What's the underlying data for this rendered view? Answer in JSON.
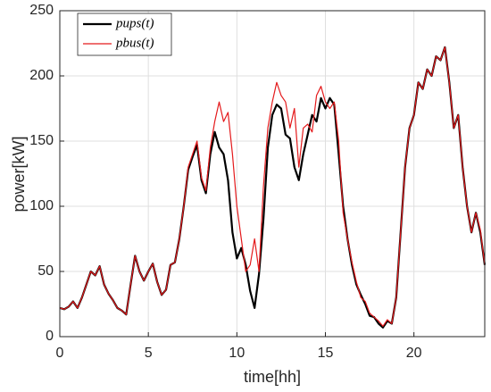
{
  "chart_data": {
    "type": "line",
    "xlabel": "time[hh]",
    "ylabel": "power[kW]",
    "x": [
      0,
      0.25,
      0.5,
      0.75,
      1,
      1.25,
      1.5,
      1.75,
      2,
      2.25,
      2.5,
      2.75,
      3,
      3.25,
      3.5,
      3.75,
      4,
      4.25,
      4.5,
      4.75,
      5,
      5.25,
      5.5,
      5.75,
      6,
      6.25,
      6.5,
      6.75,
      7,
      7.25,
      7.5,
      7.75,
      8,
      8.25,
      8.5,
      8.75,
      9,
      9.25,
      9.5,
      9.75,
      10,
      10.25,
      10.5,
      10.75,
      11,
      11.25,
      11.5,
      11.75,
      12,
      12.25,
      12.5,
      12.75,
      13,
      13.25,
      13.5,
      13.75,
      14,
      14.25,
      14.5,
      14.75,
      15,
      15.25,
      15.5,
      15.75,
      16,
      16.25,
      16.5,
      16.75,
      17,
      17.25,
      17.5,
      17.75,
      18,
      18.25,
      18.5,
      18.75,
      19,
      19.25,
      19.5,
      19.75,
      20,
      20.25,
      20.5,
      20.75,
      21,
      21.25,
      21.5,
      21.75,
      22,
      22.25,
      22.5,
      22.75,
      23,
      23.25,
      23.5,
      23.75,
      24
    ],
    "series": [
      {
        "name": "pups(t)",
        "color": "#000000",
        "values": [
          22,
          21,
          23,
          27,
          22,
          30,
          40,
          50,
          47,
          54,
          40,
          33,
          28,
          22,
          20,
          17,
          40,
          62,
          50,
          43,
          50,
          56,
          42,
          32,
          36,
          55,
          57,
          75,
          100,
          128,
          138,
          147,
          120,
          110,
          140,
          157,
          145,
          140,
          120,
          80,
          60,
          68,
          55,
          35,
          22,
          48,
          90,
          145,
          170,
          178,
          175,
          155,
          152,
          130,
          120,
          140,
          155,
          170,
          165,
          183,
          175,
          183,
          178,
          140,
          100,
          75,
          55,
          40,
          32,
          25,
          16,
          15,
          10,
          7,
          12,
          10,
          30,
          80,
          130,
          160,
          170,
          195,
          190,
          205,
          200,
          215,
          212,
          222,
          195,
          160,
          170,
          130,
          100,
          80,
          95,
          80,
          55
        ]
      },
      {
        "name": "pbus(t)",
        "color": "#e41a1c",
        "values": [
          22,
          21,
          23,
          27,
          22,
          30,
          40,
          50,
          47,
          54,
          40,
          33,
          28,
          22,
          20,
          17,
          40,
          62,
          50,
          43,
          50,
          56,
          42,
          32,
          36,
          55,
          57,
          75,
          100,
          130,
          140,
          150,
          122,
          112,
          145,
          165,
          180,
          165,
          172,
          140,
          100,
          75,
          50,
          55,
          75,
          50,
          115,
          160,
          180,
          195,
          185,
          180,
          160,
          175,
          130,
          160,
          163,
          157,
          185,
          192,
          180,
          175,
          180,
          150,
          95,
          75,
          57,
          42,
          30,
          27,
          18,
          15,
          12,
          8,
          13,
          10,
          30,
          80,
          130,
          160,
          170,
          195,
          190,
          205,
          200,
          215,
          212,
          222,
          195,
          160,
          170,
          130,
          100,
          80,
          95,
          82,
          55
        ]
      }
    ],
    "xlim": [
      0,
      24
    ],
    "xticks": [
      0,
      5,
      10,
      15,
      20
    ],
    "ylim": [
      0,
      250
    ],
    "yticks": [
      0,
      50,
      100,
      150,
      200,
      250
    ],
    "grid": true,
    "legend": "upper left"
  }
}
